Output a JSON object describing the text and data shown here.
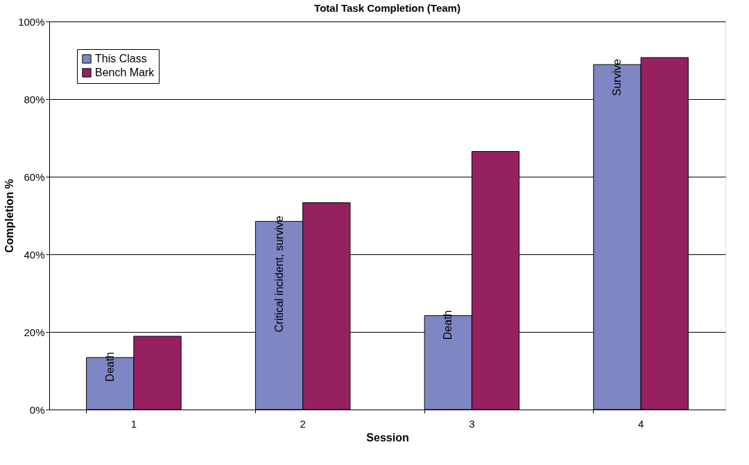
{
  "chart_data": {
    "type": "bar",
    "title": "Total Task Completion (Team)",
    "xlabel": "Session",
    "ylabel": "Completion %",
    "categories": [
      "1",
      "2",
      "3",
      "4"
    ],
    "series": [
      {
        "name": "This Class",
        "color": "#7f86c4",
        "values": [
          13.4,
          48.5,
          24.2,
          88.9
        ]
      },
      {
        "name": "Bench Mark",
        "color": "#952160",
        "values": [
          18.9,
          53.3,
          66.5,
          90.7
        ]
      }
    ],
    "ylim": [
      0,
      100
    ],
    "yticks": [
      {
        "value": 0,
        "label": "0%"
      },
      {
        "value": 20,
        "label": "20%"
      },
      {
        "value": 40,
        "label": "40%"
      },
      {
        "value": 60,
        "label": "60%"
      },
      {
        "value": 80,
        "label": "80%"
      },
      {
        "value": 100,
        "label": "100%"
      }
    ],
    "grid": "y",
    "legend": "top left",
    "annotations": [
      {
        "text": "Death",
        "x": "1",
        "y": 13.4
      },
      {
        "text": "Critical incident, survive",
        "x": "2",
        "y": 48.5
      },
      {
        "text": "Death",
        "x": "3",
        "y": 24.2
      },
      {
        "text": "Survive",
        "x": "4",
        "y": 88.9
      }
    ]
  }
}
